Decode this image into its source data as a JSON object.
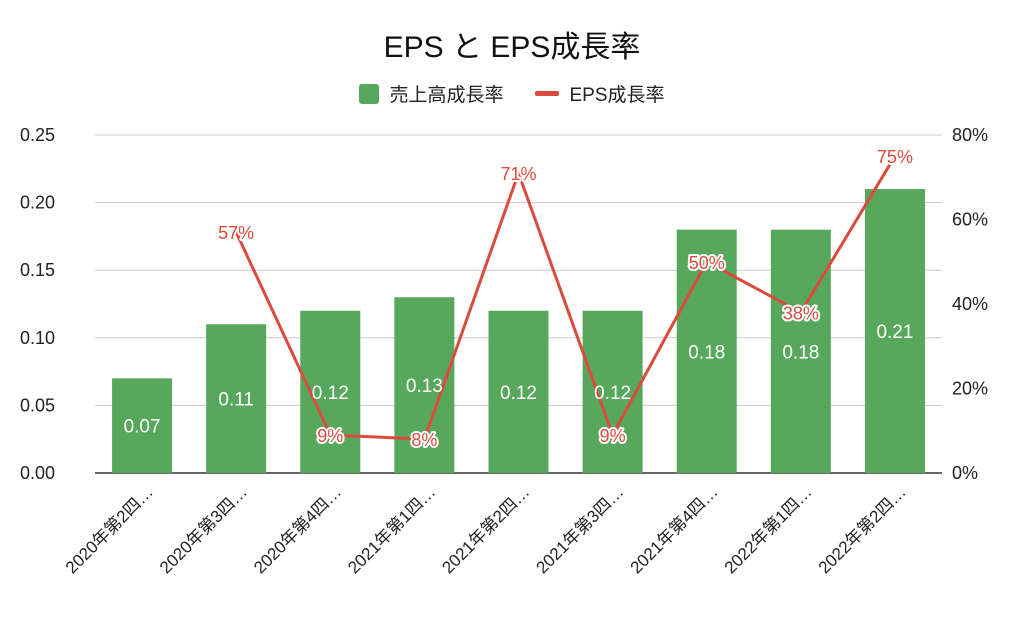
{
  "chart_data": {
    "type": "bar",
    "title": "EPS と EPS成長率",
    "categories": [
      "2020年第2四…",
      "2020年第3四…",
      "2020年第4四…",
      "2021年第1四…",
      "2021年第2四…",
      "2021年第3四…",
      "2021年第4四…",
      "2022年第1四…",
      "2022年第2四…"
    ],
    "series": [
      {
        "name": "売上高成長率",
        "kind": "bar",
        "axis": "left",
        "color": "#57a85c",
        "values": [
          0.07,
          0.11,
          0.12,
          0.13,
          0.12,
          0.12,
          0.18,
          0.18,
          0.21
        ],
        "labels": [
          "0.07",
          "0.11",
          "0.12",
          "0.13",
          "0.12",
          "0.12",
          "0.18",
          "0.18",
          "0.21"
        ]
      },
      {
        "name": "EPS成長率",
        "kind": "line",
        "axis": "right",
        "color": "#db4b3d",
        "values": [
          null,
          57,
          9,
          8,
          71,
          9,
          50,
          38,
          75
        ],
        "labels": [
          "",
          "57%",
          "9%",
          "8%",
          "71%",
          "9%",
          "50%",
          "38%",
          "75%"
        ]
      }
    ],
    "left_axis": {
      "ylim": [
        0,
        0.25
      ],
      "ticks": [
        "0.00",
        "0.05",
        "0.10",
        "0.15",
        "0.20",
        "0.25"
      ]
    },
    "right_axis": {
      "ylim": [
        0,
        80
      ],
      "ticks": [
        "0%",
        "20%",
        "40%",
        "60%",
        "80%"
      ]
    },
    "grid": true,
    "legend_position": "top"
  }
}
